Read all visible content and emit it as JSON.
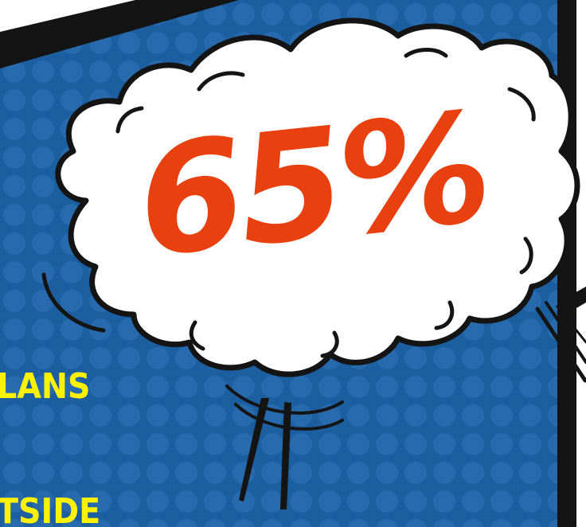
{
  "headline": {
    "percent": "65%"
  },
  "fragments": {
    "line_one": "LANS",
    "line_two": "TSIDE"
  },
  "colors": {
    "panel_blue": "#1c5fa1",
    "dot_blue": "#2f75b8",
    "frame": "#141414",
    "cloud": "#ffffff",
    "percent": "#e8410f",
    "fragment_text": "#fff200"
  },
  "icons": {
    "cloud": "speech-cloud-icon",
    "action_lines": "motion-lines-icon"
  }
}
